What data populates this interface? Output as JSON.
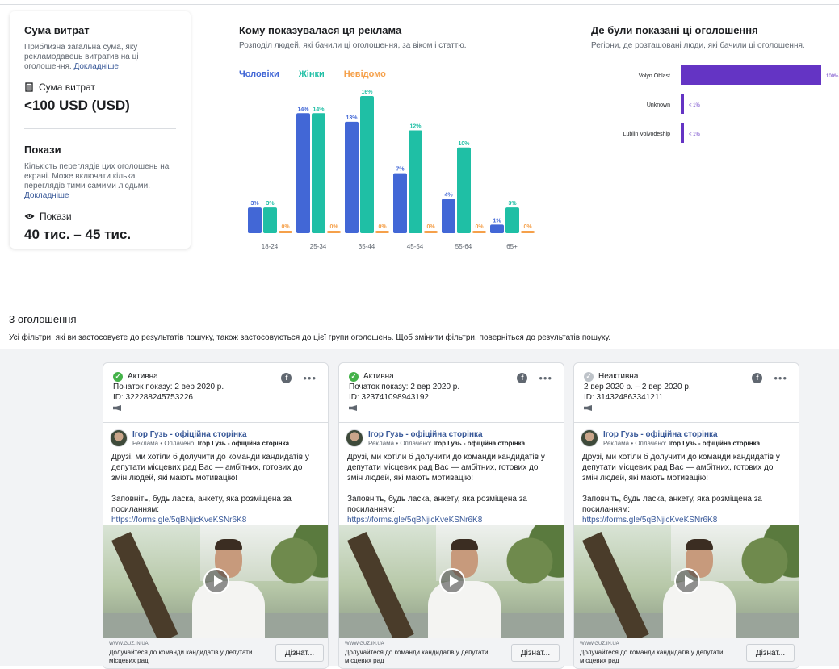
{
  "spend": {
    "title": "Сума витрат",
    "desc": "Приблизна загальна сума, яку рекламодавець витратив на ці оголошення.",
    "link": "Докладніше",
    "label": "Сума витрат",
    "value": "<100 USD (USD)"
  },
  "impressions": {
    "title": "Покази",
    "desc": "Кількість переглядів цих оголошень на екрані. Може включати кілька переглядів тими самими людьми.",
    "link": "Докладніше",
    "label": "Покази",
    "value": "40 тис. – 45 тис."
  },
  "audience": {
    "title": "Кому показувалася ця реклама",
    "subtitle": "Розподіл людей, які бачили ці оголошення, за віком і статтю."
  },
  "regions": {
    "title": "Де були показані ці оголошення",
    "subtitle": "Регіони, де розташовані люди, які бачили ці оголошення."
  },
  "colors": {
    "men": "#4267d6",
    "women": "#1fbfa5",
    "unknown": "#f5a04a",
    "region": "#6434c4",
    "active": "#44b249",
    "inactive": "#bec3c9"
  },
  "chart_data": [
    {
      "type": "bar",
      "title": "Кому показувалася ця реклама",
      "categories": [
        "18-24",
        "25-34",
        "35-44",
        "45-54",
        "55-64",
        "65+"
      ],
      "series": [
        {
          "name": "Чоловіки",
          "values": [
            3,
            14,
            13,
            7,
            4,
            1
          ],
          "labels": [
            "3%",
            "14%",
            "13%",
            "7%",
            "4%",
            "1%"
          ]
        },
        {
          "name": "Жінки",
          "values": [
            3,
            14,
            16,
            12,
            10,
            3
          ],
          "labels": [
            "3%",
            "14%",
            "16%",
            "12%",
            "10%",
            "3%"
          ]
        },
        {
          "name": "Невідомо",
          "values": [
            0,
            0,
            0,
            0,
            0,
            0
          ],
          "labels": [
            "0%",
            "0%",
            "0%",
            "0%",
            "0%",
            "0%"
          ]
        }
      ],
      "ylim": [
        0,
        16
      ]
    },
    {
      "type": "bar",
      "orientation": "horizontal",
      "title": "Де були показані ці оголошення",
      "categories": [
        "Volyn Oblast",
        "Unknown",
        "Lublin Voivodeship"
      ],
      "values": [
        100,
        0.5,
        0.5
      ],
      "labels": [
        "100%",
        "< 1%",
        "< 1%"
      ],
      "xlim": [
        0,
        100
      ]
    }
  ],
  "ads_header": {
    "count": "3 оголошення",
    "note": "Усі фільтри, які ви застосовуєте до результатів пошуку, також застосовуються до цієї групи оголошень. Щоб змінити фільтри, поверніться до результатів пошуку."
  },
  "ads": [
    {
      "status": "Активна",
      "active": true,
      "period": "Початок показу: 2 вер 2020 р.",
      "id": "ID: 322288245753226",
      "page": "Ігор Гузь - офіційна сторінка",
      "sponsor_prefix": "Реклама • Оплачено:",
      "sponsor": "Ігор Гузь - офіційна сторінка",
      "text1": "Друзі, ми хотіли б долучити до команди кандидатів у депутати місцевих рад Вас — амбітних, готових до змін людей, які мають мотивацію!",
      "text2": "Заповніть, будь ласка, анкету, яка розміщена за посиланням:",
      "link": "https://forms.gle/5qBNjicKveKSNr6K8",
      "ellipsis": "…",
      "domain": "WWW.GUZ.IN.UA",
      "cta_desc": "Долучайтеся до команди кандидатів у депутати місцевих рад",
      "cta": "Дізнат..."
    },
    {
      "status": "Активна",
      "active": true,
      "period": "Початок показу: 2 вер 2020 р.",
      "id": "ID: 323741098943192",
      "page": "Ігор Гузь - офіційна сторінка",
      "sponsor_prefix": "Реклама • Оплачено:",
      "sponsor": "Ігор Гузь - офіційна сторінка",
      "text1": "Друзі, ми хотіли б долучити до команди кандидатів у депутати місцевих рад Вас — амбітних, готових до змін людей, які мають мотивацію!",
      "text2": "Заповніть, будь ласка, анкету, яка розміщена за посиланням:",
      "link": "https://forms.gle/5qBNjicKveKSNr6K8",
      "ellipsis": "…",
      "domain": "WWW.GUZ.IN.UA",
      "cta_desc": "Долучайтеся до команди кандидатів у депутати місцевих рад",
      "cta": "Дізнат..."
    },
    {
      "status": "Неактивна",
      "active": false,
      "period": "2 вер 2020 р. – 2 вер 2020 р.",
      "id": "ID: 314324863341211",
      "page": "Ігор Гузь - офіційна сторінка",
      "sponsor_prefix": "Реклама • Оплачено:",
      "sponsor": "Ігор Гузь - офіційна сторінка",
      "text1": "Друзі, ми хотіли б долучити до команди кандидатів у депутати місцевих рад Вас — амбітних, готових до змін людей, які мають мотивацію!",
      "text2": "Заповніть, будь ласка, анкету, яка розміщена за посиланням:",
      "link": "https://forms.gle/5qBNjicKveKSNr6K8",
      "ellipsis": "…",
      "domain": "WWW.GUZ.IN.UA",
      "cta_desc": "Долучайтеся до команди кандидатів у депутати місцевих рад",
      "cta": "Дізнат..."
    }
  ]
}
